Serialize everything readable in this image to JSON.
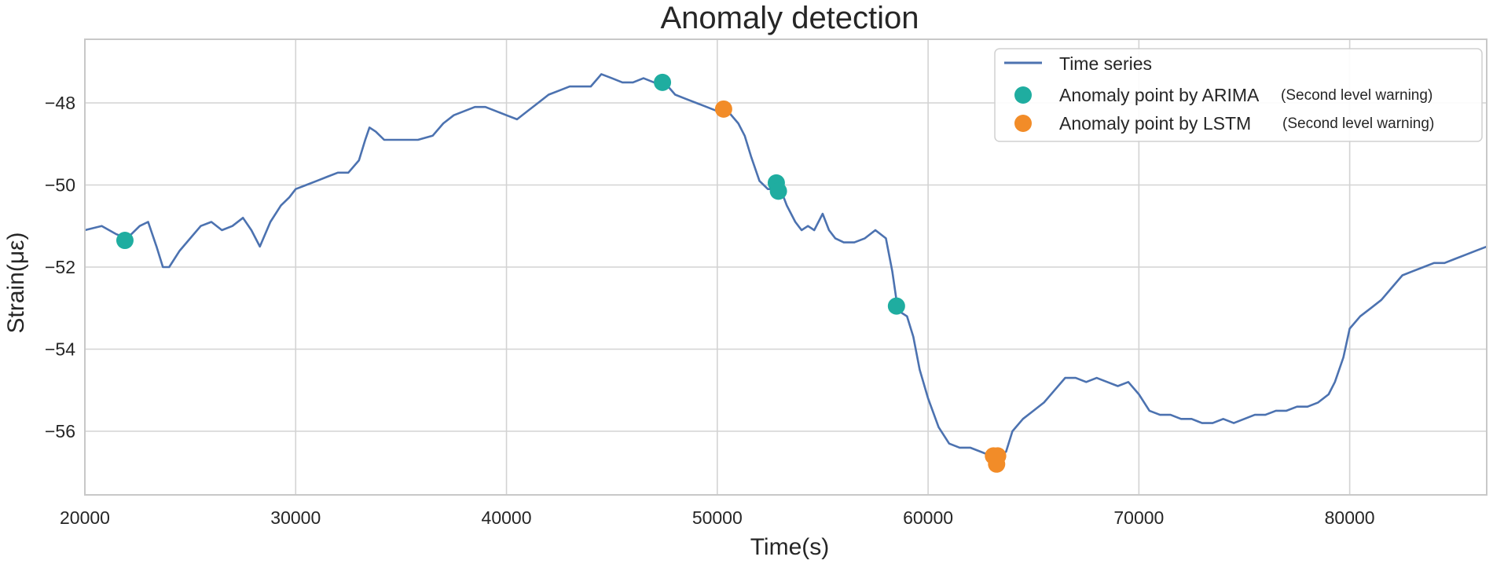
{
  "colors": {
    "line": "#4c72b0",
    "arima": "#1fada0",
    "lstm": "#f28c28",
    "grid": "#d3d3d3",
    "frame": "#c8c8c8"
  },
  "chart_data": {
    "type": "line",
    "title": "Anomaly detection",
    "xlabel": "Time(s)",
    "ylabel": "Strain(με)",
    "xlim": [
      20000,
      86500
    ],
    "ylim": [
      -57.55,
      -46.45
    ],
    "grid": true,
    "legend_position": "top-right",
    "x_ticks": [
      20000,
      30000,
      40000,
      50000,
      60000,
      70000,
      80000
    ],
    "x_tick_labels": [
      "20000",
      "30000",
      "40000",
      "50000",
      "60000",
      "70000",
      "80000"
    ],
    "y_ticks": [
      -48,
      -50,
      -52,
      -54,
      -56
    ],
    "y_tick_labels": [
      "−48",
      "−50",
      "−52",
      "−54",
      "−56"
    ],
    "legend": {
      "line_label": "Time series",
      "arima_label": "Anomaly point by ARIMA",
      "arima_note": "(Second level warning)",
      "lstm_label": "Anomaly point by LSTM",
      "lstm_note": "(Second level warning)"
    },
    "series": [
      {
        "name": "Time series",
        "kind": "line",
        "x": [
          20000,
          20800,
          21500,
          22000,
          22600,
          23000,
          23400,
          23700,
          24000,
          24500,
          25000,
          25500,
          26000,
          26500,
          27000,
          27500,
          27900,
          28300,
          28800,
          29300,
          29700,
          30000,
          30500,
          31000,
          31500,
          32000,
          32500,
          33000,
          33300,
          33500,
          33800,
          34200,
          35000,
          35800,
          36500,
          37000,
          37500,
          38000,
          38500,
          39000,
          39500,
          40000,
          40500,
          41000,
          41500,
          42000,
          42500,
          43000,
          43500,
          44000,
          44500,
          45000,
          45500,
          46000,
          46500,
          47000,
          47500,
          48000,
          48500,
          49000,
          49500,
          50000,
          50500,
          51000,
          51300,
          51600,
          52000,
          52400,
          52800,
          53000,
          53300,
          53700,
          54000,
          54300,
          54600,
          55000,
          55300,
          55600,
          56000,
          56500,
          57000,
          57500,
          58000,
          58300,
          58500,
          58700,
          59000,
          59300,
          59600,
          60000,
          60500,
          61000,
          61500,
          62000,
          62500,
          63000,
          63400,
          63700,
          64000,
          64500,
          65000,
          65500,
          66000,
          66500,
          67000,
          67500,
          68000,
          68500,
          69000,
          69500,
          70000,
          70500,
          71000,
          71500,
          72000,
          72500,
          73000,
          73500,
          74000,
          74500,
          75000,
          75500,
          76000,
          76500,
          77000,
          77500,
          78000,
          78500,
          79000,
          79300,
          79700,
          80000,
          80500,
          81000,
          81500,
          82000,
          82500,
          83000,
          83500,
          84000,
          84500,
          85000,
          85500,
          86000,
          86500
        ],
        "y": [
          -51.1,
          -51.0,
          -51.2,
          -51.3,
          -51.0,
          -50.9,
          -51.5,
          -52.0,
          -52.0,
          -51.6,
          -51.3,
          -51.0,
          -50.9,
          -51.1,
          -51.0,
          -50.8,
          -51.1,
          -51.5,
          -50.9,
          -50.5,
          -50.3,
          -50.1,
          -50.0,
          -49.9,
          -49.8,
          -49.7,
          -49.7,
          -49.4,
          -48.9,
          -48.6,
          -48.7,
          -48.9,
          -48.9,
          -48.9,
          -48.8,
          -48.5,
          -48.3,
          -48.2,
          -48.1,
          -48.1,
          -48.2,
          -48.3,
          -48.4,
          -48.2,
          -48.0,
          -47.8,
          -47.7,
          -47.6,
          -47.6,
          -47.6,
          -47.3,
          -47.4,
          -47.5,
          -47.5,
          -47.4,
          -47.5,
          -47.5,
          -47.8,
          -47.9,
          -48.0,
          -48.1,
          -48.2,
          -48.2,
          -48.5,
          -48.8,
          -49.3,
          -49.9,
          -50.1,
          -50.1,
          -50.1,
          -50.5,
          -50.9,
          -51.1,
          -51.0,
          -51.1,
          -50.7,
          -51.1,
          -51.3,
          -51.4,
          -51.4,
          -51.3,
          -51.1,
          -51.3,
          -52.1,
          -52.8,
          -53.1,
          -53.2,
          -53.7,
          -54.5,
          -55.2,
          -55.9,
          -56.3,
          -56.4,
          -56.4,
          -56.5,
          -56.6,
          -56.6,
          -56.5,
          -56.0,
          -55.7,
          -55.5,
          -55.3,
          -55.0,
          -54.7,
          -54.7,
          -54.8,
          -54.7,
          -54.8,
          -54.9,
          -54.8,
          -55.1,
          -55.5,
          -55.6,
          -55.6,
          -55.7,
          -55.7,
          -55.8,
          -55.8,
          -55.7,
          -55.8,
          -55.7,
          -55.6,
          -55.6,
          -55.5,
          -55.5,
          -55.4,
          -55.4,
          -55.3,
          -55.1,
          -54.8,
          -54.2,
          -53.5,
          -53.2,
          -53.0,
          -52.8,
          -52.5,
          -52.2,
          -52.1,
          -52.0,
          -51.9,
          -51.9,
          -51.8,
          -51.7,
          -51.6,
          -51.5
        ]
      },
      {
        "name": "Anomaly point by ARIMA",
        "kind": "scatter",
        "x": [
          21900,
          47400,
          52800,
          52900,
          58500
        ],
        "y": [
          -51.35,
          -47.5,
          -49.95,
          -50.15,
          -52.95
        ]
      },
      {
        "name": "Anomaly point by LSTM",
        "kind": "scatter",
        "x": [
          50300,
          63100,
          63300,
          63250
        ],
        "y": [
          -48.15,
          -56.6,
          -56.6,
          -56.8
        ]
      }
    ]
  }
}
